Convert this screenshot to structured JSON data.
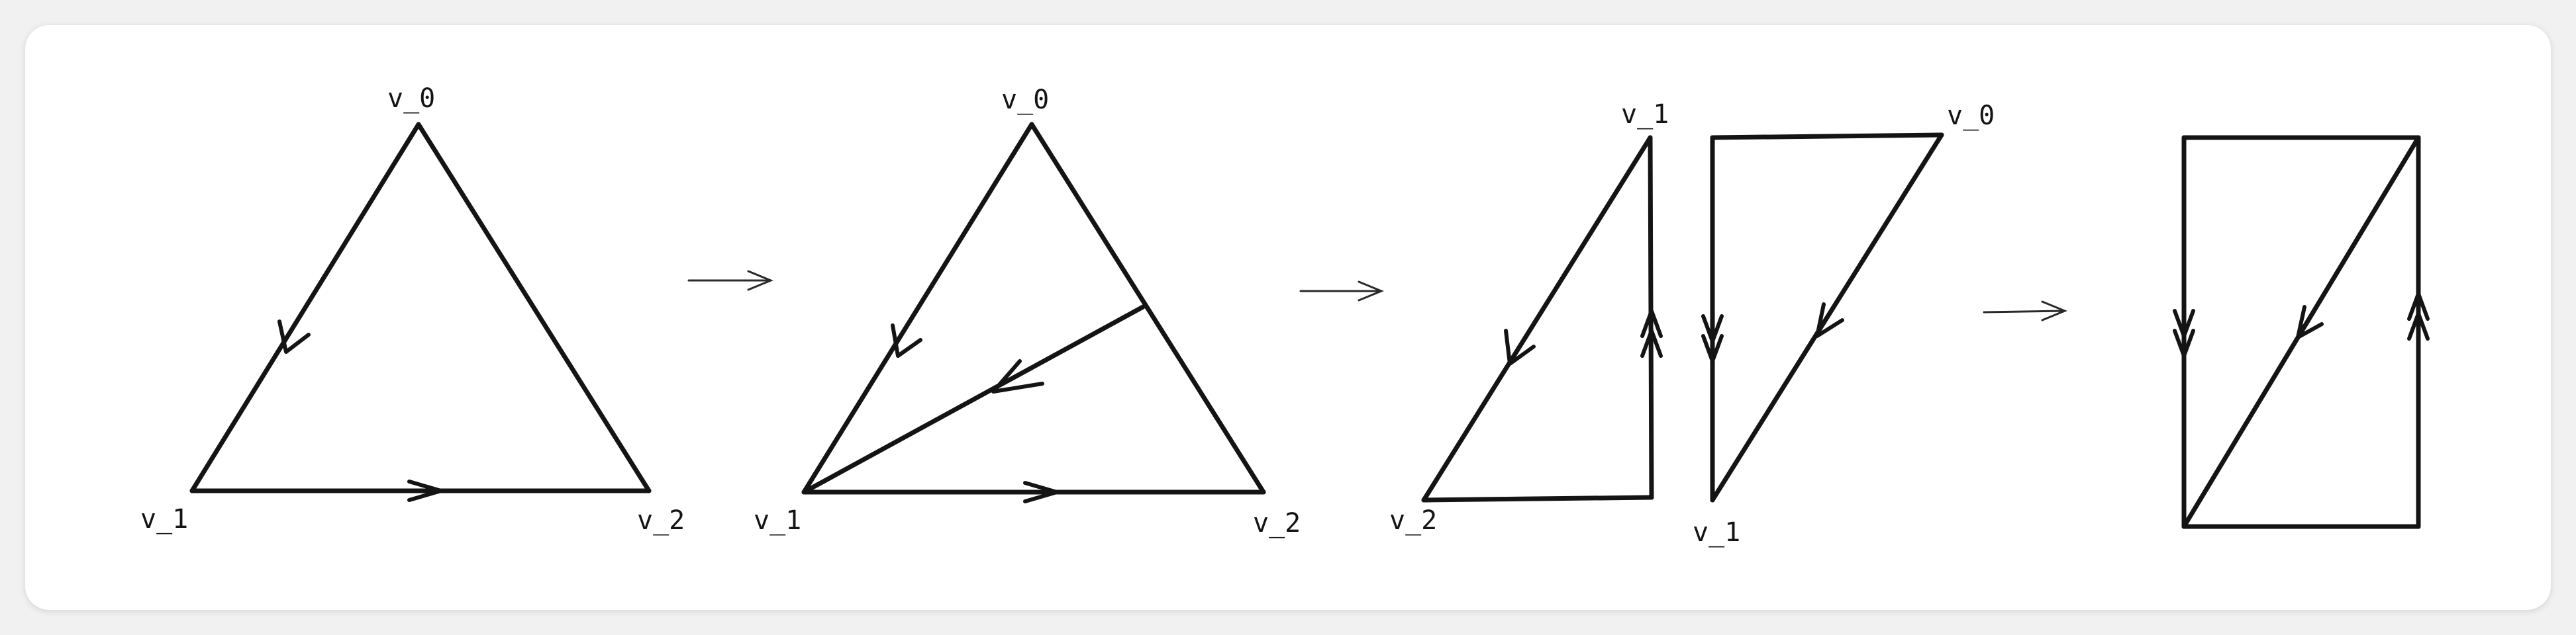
{
  "labels": {
    "v0": "v_0",
    "v1": "v_1",
    "v2": "v_2"
  },
  "colors": {
    "background": "#f1f1f1",
    "card": "#ffffff",
    "stroke": "#141414"
  }
}
